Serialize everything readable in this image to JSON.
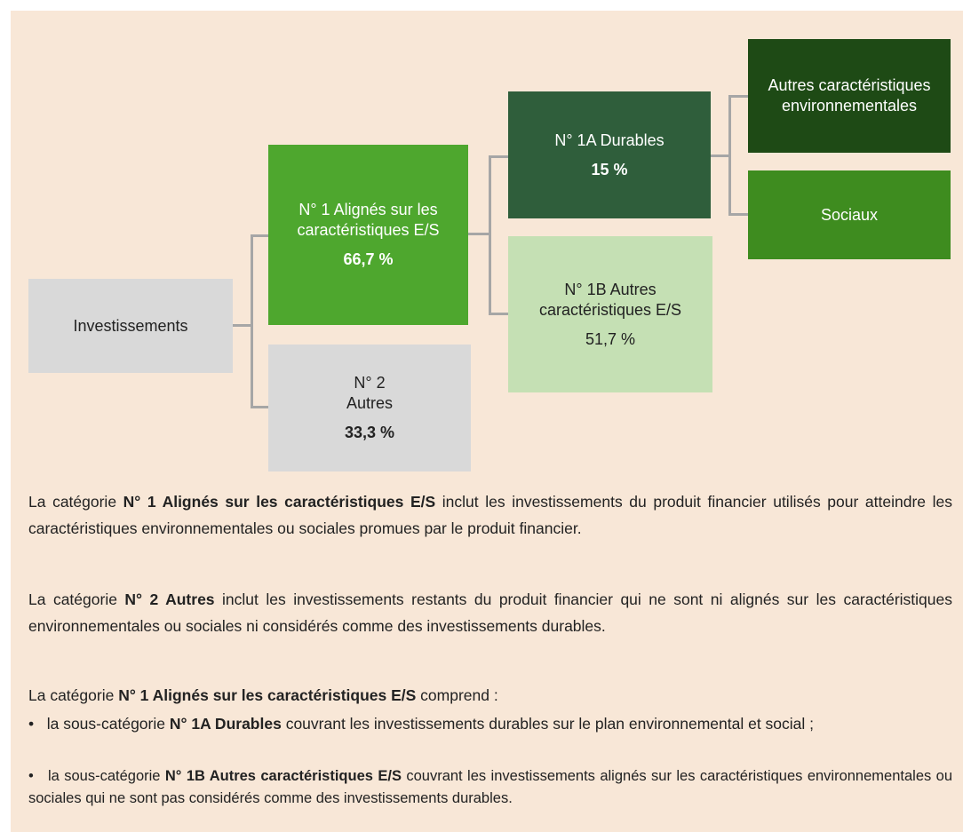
{
  "nodes": [
    {
      "label": "Investissements"
    },
    {
      "label": "N° 1 Alignés sur les caractéristiques E/S",
      "value": "66,7 %"
    },
    {
      "label": "N° 2 Autres",
      "value": "33,3 %"
    },
    {
      "label": "N° 1A Durables",
      "value": "15 %"
    },
    {
      "label": "N° 1B Autres caractéristiques E/S",
      "value": "51,7 %"
    },
    {
      "label": "Autres caractéristiques environnementales"
    },
    {
      "label": "Sociaux"
    }
  ],
  "paragraphs": [
    [
      "La catégorie ",
      "N° 1 Alignés sur les caractéristiques E/S",
      " inclut les investissements du produit financier utilisés pour atteindre les caractéristiques environnementales ou sociales promues par le produit financier."
    ],
    [
      "La catégorie ",
      "N° 2 Autres",
      " inclut les investissements restants du produit financier qui ne sont ni alignés sur les caractéristiques environnementales ou sociales ni considérés comme des investissements durables."
    ],
    [
      "La catégorie ",
      "N° 1 Alignés sur les caractéristiques E/S",
      " comprend :"
    ],
    [
      "•   la sous-catégorie ",
      "N° 1A Durables",
      " couvrant les investissements durables sur le plan environnemental et social ;"
    ],
    [
      "•   la sous-catégorie ",
      "N° 1B Autres caractéristiques E/S",
      " couvrant les investissements alignés sur les caractéristiques environnementales ou sociales qui ne sont pas considérés comme des investissements durables."
    ]
  ]
}
